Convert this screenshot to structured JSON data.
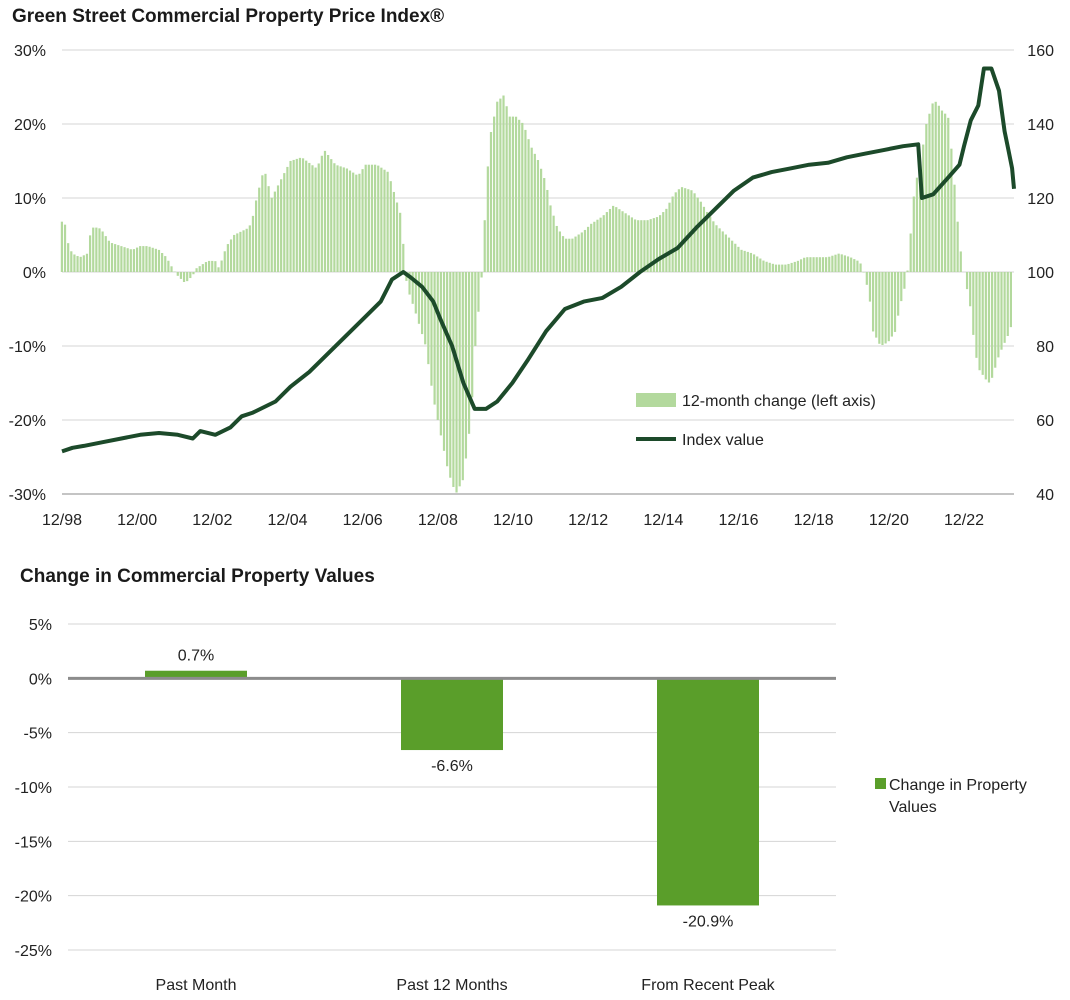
{
  "chart_data": [
    {
      "type": "bar+line",
      "title": "Green Street Commercial Property Price Index®",
      "x_ticks": [
        "12/98",
        "12/00",
        "12/02",
        "12/04",
        "12/06",
        "12/08",
        "12/10",
        "12/12",
        "12/14",
        "12/16",
        "12/18",
        "12/20",
        "12/22"
      ],
      "x_range": [
        1998.92,
        2024.25
      ],
      "y_left": {
        "ticks": [
          "30%",
          "20%",
          "10%",
          "0%",
          "-10%",
          "-20%",
          "-30%"
        ],
        "range": [
          -30,
          30
        ]
      },
      "y_right": {
        "ticks": [
          "160",
          "140",
          "120",
          "100",
          "80",
          "60",
          "40"
        ],
        "range": [
          40,
          160
        ]
      },
      "grid": true,
      "legend_position": "bottom-right",
      "series": [
        {
          "name": "12-month change (left axis)",
          "axis": "left",
          "style": "bar",
          "color": "#b3d99d",
          "points": [
            [
              1998.92,
              6.8
            ],
            [
              1999.0,
              6.5
            ],
            [
              1999.1,
              3.5
            ],
            [
              1999.2,
              2.5
            ],
            [
              1999.4,
              2.0
            ],
            [
              1999.6,
              2.5
            ],
            [
              1999.7,
              6.0
            ],
            [
              1999.9,
              6.0
            ],
            [
              2000.0,
              5.5
            ],
            [
              2000.2,
              4.0
            ],
            [
              2000.5,
              3.5
            ],
            [
              2000.8,
              3.0
            ],
            [
              2001.0,
              3.5
            ],
            [
              2001.2,
              3.5
            ],
            [
              2001.5,
              3.0
            ],
            [
              2001.7,
              2.0
            ],
            [
              2001.9,
              0.2
            ],
            [
              2002.0,
              -0.5
            ],
            [
              2002.2,
              -1.5
            ],
            [
              2002.4,
              -0.5
            ],
            [
              2002.5,
              0.5
            ],
            [
              2002.8,
              1.5
            ],
            [
              2003.0,
              1.5
            ],
            [
              2003.1,
              0.5
            ],
            [
              2003.3,
              3.5
            ],
            [
              2003.5,
              5.0
            ],
            [
              2003.7,
              5.5
            ],
            [
              2003.9,
              6.0
            ],
            [
              2004.0,
              7.5
            ],
            [
              2004.1,
              10.0
            ],
            [
              2004.3,
              14.0
            ],
            [
              2004.5,
              10.0
            ],
            [
              2004.8,
              13.0
            ],
            [
              2005.0,
              15.0
            ],
            [
              2005.3,
              15.5
            ],
            [
              2005.7,
              14.0
            ],
            [
              2005.9,
              16.5
            ],
            [
              2006.2,
              14.5
            ],
            [
              2006.5,
              14.0
            ],
            [
              2006.8,
              13.0
            ],
            [
              2007.0,
              14.5
            ],
            [
              2007.3,
              14.5
            ],
            [
              2007.6,
              13.5
            ],
            [
              2007.8,
              10.0
            ],
            [
              2007.92,
              8.0
            ],
            [
              2008.0,
              4.0
            ],
            [
              2008.1,
              -2.0
            ],
            [
              2008.3,
              -5.0
            ],
            [
              2008.6,
              -10.0
            ],
            [
              2008.8,
              -17.0
            ],
            [
              2009.0,
              -22.0
            ],
            [
              2009.2,
              -27.0
            ],
            [
              2009.4,
              -30.0
            ],
            [
              2009.6,
              -28.0
            ],
            [
              2009.8,
              -20.0
            ],
            [
              2009.92,
              -10.0
            ],
            [
              2010.1,
              0.0
            ],
            [
              2010.2,
              10.0
            ],
            [
              2010.3,
              18.0
            ],
            [
              2010.5,
              23.0
            ],
            [
              2010.7,
              24.0
            ],
            [
              2010.8,
              21.0
            ],
            [
              2011.0,
              21.0
            ],
            [
              2011.2,
              20.0
            ],
            [
              2011.4,
              17.0
            ],
            [
              2011.6,
              15.0
            ],
            [
              2011.8,
              12.0
            ],
            [
              2011.92,
              9.0
            ],
            [
              2012.1,
              6.0
            ],
            [
              2012.3,
              4.5
            ],
            [
              2012.5,
              4.5
            ],
            [
              2012.8,
              5.5
            ],
            [
              2013.0,
              6.5
            ],
            [
              2013.3,
              7.5
            ],
            [
              2013.6,
              9.0
            ],
            [
              2013.9,
              8.0
            ],
            [
              2014.2,
              7.0
            ],
            [
              2014.5,
              7.0
            ],
            [
              2014.8,
              7.5
            ],
            [
              2015.0,
              8.5
            ],
            [
              2015.2,
              10.5
            ],
            [
              2015.4,
              11.5
            ],
            [
              2015.7,
              11.0
            ],
            [
              2015.92,
              9.5
            ],
            [
              2016.1,
              8.0
            ],
            [
              2016.3,
              6.5
            ],
            [
              2016.5,
              5.5
            ],
            [
              2016.8,
              4.0
            ],
            [
              2017.0,
              3.0
            ],
            [
              2017.3,
              2.5
            ],
            [
              2017.6,
              1.5
            ],
            [
              2017.9,
              1.0
            ],
            [
              2018.2,
              1.0
            ],
            [
              2018.5,
              1.5
            ],
            [
              2018.7,
              2.0
            ],
            [
              2019.0,
              2.0
            ],
            [
              2019.3,
              2.0
            ],
            [
              2019.6,
              2.5
            ],
            [
              2019.9,
              2.0
            ],
            [
              2020.1,
              1.5
            ],
            [
              2020.2,
              1.0
            ],
            [
              2020.4,
              -3.0
            ],
            [
              2020.5,
              -8.0
            ],
            [
              2020.7,
              -10.0
            ],
            [
              2020.9,
              -9.5
            ],
            [
              2021.1,
              -8.0
            ],
            [
              2021.2,
              -5.0
            ],
            [
              2021.4,
              -1.0
            ],
            [
              2021.5,
              5.0
            ],
            [
              2021.6,
              11.0
            ],
            [
              2021.8,
              16.0
            ],
            [
              2021.92,
              20.0
            ],
            [
              2022.1,
              23.0
            ],
            [
              2022.2,
              23.0
            ],
            [
              2022.3,
              22.0
            ],
            [
              2022.5,
              21.0
            ],
            [
              2022.6,
              16.0
            ],
            [
              2022.7,
              10.0
            ],
            [
              2022.8,
              4.0
            ],
            [
              2022.92,
              0.0
            ],
            [
              2023.1,
              -5.0
            ],
            [
              2023.2,
              -10.0
            ],
            [
              2023.3,
              -13.0
            ],
            [
              2023.5,
              -14.5
            ],
            [
              2023.6,
              -15.0
            ],
            [
              2023.7,
              -14.0
            ],
            [
              2023.8,
              -12.0
            ],
            [
              2023.92,
              -10.5
            ],
            [
              2024.1,
              -8.5
            ],
            [
              2024.2,
              -7.0
            ],
            [
              2024.25,
              -6.6
            ]
          ]
        },
        {
          "name": "Index value",
          "axis": "right",
          "style": "line",
          "color": "#1c4a2a",
          "points": [
            [
              1998.92,
              51.5
            ],
            [
              1999.2,
              52.5
            ],
            [
              1999.5,
              53.0
            ],
            [
              2000.0,
              54.0
            ],
            [
              2000.5,
              55.0
            ],
            [
              2001.0,
              56.0
            ],
            [
              2001.5,
              56.5
            ],
            [
              2002.0,
              56.0
            ],
            [
              2002.4,
              55.0
            ],
            [
              2002.6,
              57.0
            ],
            [
              2003.0,
              56.0
            ],
            [
              2003.4,
              58.0
            ],
            [
              2003.7,
              61.0
            ],
            [
              2004.0,
              62.0
            ],
            [
              2004.6,
              65.0
            ],
            [
              2005.0,
              69.0
            ],
            [
              2005.5,
              73.0
            ],
            [
              2006.0,
              78.0
            ],
            [
              2006.5,
              83.0
            ],
            [
              2007.0,
              88.0
            ],
            [
              2007.4,
              92.0
            ],
            [
              2007.7,
              98.0
            ],
            [
              2008.0,
              100.0
            ],
            [
              2008.2,
              98.5
            ],
            [
              2008.5,
              96.0
            ],
            [
              2008.8,
              92.0
            ],
            [
              2009.0,
              87.0
            ],
            [
              2009.3,
              80.0
            ],
            [
              2009.6,
              70.0
            ],
            [
              2009.9,
              63.0
            ],
            [
              2010.2,
              63.0
            ],
            [
              2010.5,
              65.0
            ],
            [
              2010.9,
              70.0
            ],
            [
              2011.3,
              76.0
            ],
            [
              2011.8,
              84.0
            ],
            [
              2012.3,
              90.0
            ],
            [
              2012.8,
              92.0
            ],
            [
              2013.3,
              93.0
            ],
            [
              2013.8,
              96.0
            ],
            [
              2014.3,
              100.0
            ],
            [
              2014.8,
              103.5
            ],
            [
              2015.3,
              106.5
            ],
            [
              2015.8,
              112.0
            ],
            [
              2016.3,
              117.0
            ],
            [
              2016.8,
              122.0
            ],
            [
              2017.3,
              125.5
            ],
            [
              2017.8,
              127.0
            ],
            [
              2018.3,
              128.0
            ],
            [
              2018.8,
              129.0
            ],
            [
              2019.3,
              129.5
            ],
            [
              2019.8,
              131.0
            ],
            [
              2020.3,
              132.0
            ],
            [
              2020.8,
              133.0
            ],
            [
              2021.3,
              134.0
            ],
            [
              2021.7,
              134.5
            ],
            [
              2021.8,
              120.0
            ],
            [
              2022.1,
              121.0
            ],
            [
              2022.5,
              125.5
            ],
            [
              2022.8,
              129.0
            ],
            [
              2022.92,
              134.0
            ],
            [
              2023.1,
              141.0
            ],
            [
              2023.3,
              145.0
            ],
            [
              2023.45,
              155.0
            ],
            [
              2023.65,
              155.0
            ],
            [
              2023.85,
              149.0
            ],
            [
              2024.0,
              138.0
            ],
            [
              2024.1,
              133.0
            ],
            [
              2024.2,
              128.0
            ],
            [
              2024.25,
              122.5
            ]
          ]
        }
      ]
    },
    {
      "type": "bar",
      "title": "Change in Commercial Property Values",
      "categories": [
        "Past Month",
        "Past 12 Months",
        "From Recent Peak"
      ],
      "values": [
        0.7,
        -6.6,
        -20.9
      ],
      "data_labels": [
        "0.7%",
        "-6.6%",
        "-20.9%"
      ],
      "y_ticks": [
        "5%",
        "0%",
        "-5%",
        "-10%",
        "-15%",
        "-20%",
        "-25%"
      ],
      "ylim": [
        -25,
        5
      ],
      "grid": true,
      "legend_position": "right",
      "series_name": "Change in Property Values",
      "color": "#5a9e2a"
    }
  ]
}
